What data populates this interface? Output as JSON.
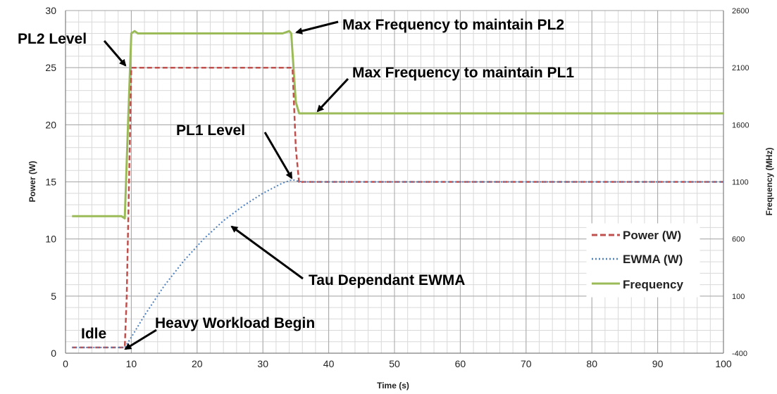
{
  "chart_data": {
    "type": "line",
    "title": "",
    "xlabel": "Time (s)",
    "ylabel": "Power (W)",
    "y2label": "Frequency (MHz)",
    "xlim": [
      0,
      100
    ],
    "ylim": [
      0,
      30
    ],
    "y2lim": [
      -400,
      2600
    ],
    "x_ticks": [
      0,
      10,
      20,
      30,
      40,
      50,
      60,
      70,
      80,
      90,
      100
    ],
    "y_ticks": [
      0,
      5,
      10,
      15,
      20,
      25,
      30
    ],
    "y2_ticks": [
      -400,
      100,
      600,
      1100,
      1600,
      2100,
      2600
    ],
    "grid": true,
    "legend_position": "bottom-right",
    "series": [
      {
        "name": "Power (W)",
        "axis": "left",
        "color": "#c0504d",
        "style": "dashed",
        "x": [
          1,
          9,
          9.3,
          10,
          11,
          34,
          34.5,
          35,
          35.5,
          36,
          100
        ],
        "y": [
          0.5,
          0.5,
          5,
          25,
          25,
          25,
          25,
          18,
          14.9,
          15,
          15
        ]
      },
      {
        "name": "EWMA (W)",
        "axis": "left",
        "color": "#4f81bd",
        "style": "dotted",
        "x": [
          1,
          9,
          10,
          12,
          15,
          18,
          21,
          24,
          27,
          30,
          33,
          34.5,
          35,
          36,
          100
        ],
        "y": [
          0.5,
          0.5,
          1.4,
          3.3,
          5.9,
          8.1,
          10.0,
          11.6,
          12.9,
          14.0,
          14.9,
          15.2,
          15.1,
          15.0,
          15.0
        ]
      },
      {
        "name": "Frequency",
        "axis": "right",
        "color": "#9bbb59",
        "style": "solid",
        "x": [
          1,
          8.5,
          9,
          9.5,
          10,
          10.5,
          11,
          33,
          34,
          34.3,
          35,
          35.5,
          36,
          100
        ],
        "y": [
          800,
          800,
          780,
          1600,
          2400,
          2420,
          2400,
          2400,
          2420,
          2400,
          1800,
          1700,
          1700,
          1700
        ]
      }
    ],
    "annotations": [
      {
        "id": "pl2-level",
        "text": "PL2 Level",
        "target_x": 9.8,
        "target_y": 25,
        "target_axis": "left"
      },
      {
        "id": "max-freq-pl2",
        "text": "Max Frequency to maintain PL2",
        "target_x": 34.3,
        "target_y": 2420,
        "target_axis": "right"
      },
      {
        "id": "max-freq-pl1",
        "text": "Max Frequency to maintain PL1",
        "target_x": 38,
        "target_y": 1700,
        "target_axis": "right"
      },
      {
        "id": "pl1-level",
        "text": "PL1 Level",
        "target_x": 34.8,
        "target_y": 15.2,
        "target_axis": "left"
      },
      {
        "id": "tau-ewma",
        "text": "Tau Dependant EWMA",
        "target_x": 25.5,
        "target_y": 11.3,
        "target_axis": "left"
      },
      {
        "id": "idle",
        "text": "Idle",
        "target_x": null,
        "target_y": null,
        "target_axis": "left"
      },
      {
        "id": "heavy-workload",
        "text": "Heavy Workload Begin",
        "target_x": 9.3,
        "target_y": 0.3,
        "target_axis": "left"
      }
    ]
  }
}
